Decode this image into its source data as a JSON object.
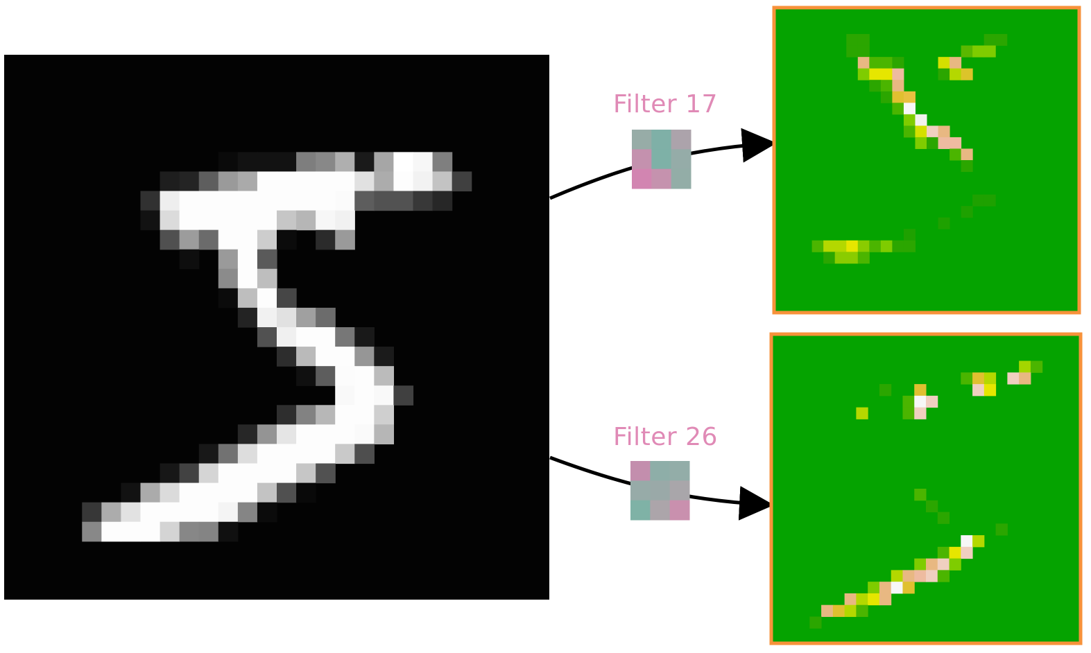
{
  "labels": {
    "filter_a": "Filter 17",
    "filter_b": "Filter 26"
  },
  "colors": {
    "input_background": "#030303",
    "feature_map_background": "#05a300",
    "feature_map_border": "#f7923a",
    "label_color": "#e08ab6",
    "arrow_color": "#000000"
  },
  "input_image": {
    "grid_size": 28,
    "description_values": "grayscale intensity 0-255 per pixel",
    "pixels": [
      [
        3,
        3,
        3,
        3,
        3,
        3,
        3,
        3,
        3,
        3,
        3,
        3,
        3,
        3,
        3,
        3,
        3,
        3,
        3,
        3,
        3,
        3,
        3,
        3,
        3,
        3,
        3,
        3
      ],
      [
        3,
        3,
        3,
        3,
        3,
        3,
        3,
        3,
        3,
        3,
        3,
        3,
        3,
        3,
        3,
        3,
        3,
        3,
        3,
        3,
        3,
        3,
        3,
        3,
        3,
        3,
        3,
        3
      ],
      [
        3,
        3,
        3,
        3,
        3,
        3,
        3,
        3,
        3,
        3,
        3,
        3,
        3,
        3,
        3,
        3,
        3,
        3,
        3,
        3,
        3,
        3,
        3,
        3,
        3,
        3,
        3,
        3
      ],
      [
        3,
        3,
        3,
        3,
        3,
        3,
        3,
        3,
        3,
        3,
        3,
        3,
        3,
        3,
        3,
        3,
        3,
        3,
        3,
        3,
        3,
        3,
        3,
        3,
        3,
        3,
        3,
        3
      ],
      [
        3,
        3,
        3,
        3,
        3,
        3,
        3,
        3,
        3,
        3,
        3,
        3,
        3,
        3,
        3,
        3,
        3,
        3,
        3,
        3,
        3,
        3,
        3,
        3,
        3,
        3,
        3,
        3
      ],
      [
        3,
        3,
        3,
        3,
        3,
        3,
        3,
        3,
        3,
        3,
        3,
        10,
        18,
        18,
        18,
        126,
        136,
        175,
        26,
        166,
        255,
        247,
        127,
        3,
        3,
        3,
        3,
        3
      ],
      [
        3,
        3,
        3,
        3,
        3,
        3,
        3,
        3,
        30,
        36,
        94,
        154,
        170,
        253,
        253,
        253,
        253,
        253,
        225,
        172,
        253,
        242,
        195,
        64,
        3,
        3,
        3,
        3
      ],
      [
        3,
        3,
        3,
        3,
        3,
        3,
        3,
        49,
        238,
        253,
        253,
        253,
        253,
        253,
        253,
        253,
        253,
        251,
        93,
        82,
        82,
        56,
        39,
        3,
        3,
        3,
        3,
        3
      ],
      [
        3,
        3,
        3,
        3,
        3,
        3,
        3,
        18,
        219,
        253,
        253,
        253,
        253,
        253,
        198,
        182,
        247,
        241,
        3,
        3,
        3,
        3,
        3,
        3,
        3,
        3,
        3,
        3
      ],
      [
        3,
        3,
        3,
        3,
        3,
        3,
        3,
        3,
        80,
        156,
        107,
        253,
        253,
        205,
        11,
        3,
        43,
        154,
        3,
        3,
        3,
        3,
        3,
        3,
        3,
        3,
        3,
        3
      ],
      [
        3,
        3,
        3,
        3,
        3,
        3,
        3,
        3,
        3,
        14,
        1,
        154,
        253,
        90,
        3,
        3,
        3,
        3,
        3,
        3,
        3,
        3,
        3,
        3,
        3,
        3,
        3,
        3
      ],
      [
        3,
        3,
        3,
        3,
        3,
        3,
        3,
        3,
        3,
        3,
        3,
        139,
        253,
        190,
        2,
        3,
        3,
        3,
        3,
        3,
        3,
        3,
        3,
        3,
        3,
        3,
        3,
        3
      ],
      [
        3,
        3,
        3,
        3,
        3,
        3,
        3,
        3,
        3,
        3,
        3,
        11,
        190,
        253,
        70,
        3,
        3,
        3,
        3,
        3,
        3,
        3,
        3,
        3,
        3,
        3,
        3,
        3
      ],
      [
        3,
        3,
        3,
        3,
        3,
        3,
        3,
        3,
        3,
        3,
        3,
        3,
        35,
        241,
        225,
        160,
        108,
        1,
        3,
        3,
        3,
        3,
        3,
        3,
        3,
        3,
        3,
        3
      ],
      [
        3,
        3,
        3,
        3,
        3,
        3,
        3,
        3,
        3,
        3,
        3,
        3,
        3,
        81,
        240,
        253,
        253,
        119,
        25,
        3,
        3,
        3,
        3,
        3,
        3,
        3,
        3,
        3
      ],
      [
        3,
        3,
        3,
        3,
        3,
        3,
        3,
        3,
        3,
        3,
        3,
        3,
        3,
        3,
        45,
        186,
        253,
        253,
        150,
        27,
        3,
        3,
        3,
        3,
        3,
        3,
        3,
        3
      ],
      [
        3,
        3,
        3,
        3,
        3,
        3,
        3,
        3,
        3,
        3,
        3,
        3,
        3,
        3,
        3,
        16,
        93,
        252,
        253,
        187,
        3,
        3,
        3,
        3,
        3,
        3,
        3,
        3
      ],
      [
        3,
        3,
        3,
        3,
        3,
        3,
        3,
        3,
        3,
        3,
        3,
        3,
        3,
        3,
        3,
        3,
        3,
        249,
        253,
        249,
        64,
        3,
        3,
        3,
        3,
        3,
        3,
        3
      ],
      [
        3,
        3,
        3,
        3,
        3,
        3,
        3,
        3,
        3,
        3,
        3,
        3,
        3,
        3,
        46,
        130,
        183,
        253,
        253,
        207,
        2,
        3,
        3,
        3,
        3,
        3,
        3,
        3
      ],
      [
        3,
        3,
        3,
        3,
        3,
        3,
        3,
        3,
        3,
        3,
        3,
        3,
        39,
        148,
        229,
        253,
        253,
        253,
        250,
        182,
        3,
        3,
        3,
        3,
        3,
        3,
        3,
        3
      ],
      [
        3,
        3,
        3,
        3,
        3,
        3,
        3,
        3,
        3,
        3,
        24,
        114,
        221,
        253,
        253,
        253,
        253,
        201,
        78,
        3,
        3,
        3,
        3,
        3,
        3,
        3,
        3,
        3
      ],
      [
        3,
        3,
        3,
        3,
        3,
        3,
        3,
        3,
        23,
        66,
        213,
        253,
        253,
        253,
        253,
        198,
        81,
        2,
        3,
        3,
        3,
        3,
        3,
        3,
        3,
        3,
        3,
        3
      ],
      [
        3,
        3,
        3,
        3,
        3,
        3,
        18,
        171,
        219,
        253,
        253,
        253,
        253,
        195,
        80,
        9,
        3,
        3,
        3,
        3,
        3,
        3,
        3,
        3,
        3,
        3,
        3,
        3
      ],
      [
        3,
        3,
        3,
        3,
        55,
        172,
        226,
        253,
        253,
        253,
        253,
        244,
        133,
        11,
        3,
        3,
        3,
        3,
        3,
        3,
        3,
        3,
        3,
        3,
        3,
        3,
        3,
        3
      ],
      [
        3,
        3,
        3,
        3,
        136,
        253,
        253,
        253,
        212,
        135,
        132,
        16,
        3,
        3,
        3,
        3,
        3,
        3,
        3,
        3,
        3,
        3,
        3,
        3,
        3,
        3,
        3,
        3
      ],
      [
        3,
        3,
        3,
        3,
        3,
        3,
        3,
        3,
        3,
        3,
        3,
        3,
        3,
        3,
        3,
        3,
        3,
        3,
        3,
        3,
        3,
        3,
        3,
        3,
        3,
        3,
        3,
        3
      ],
      [
        3,
        3,
        3,
        3,
        3,
        3,
        3,
        3,
        3,
        3,
        3,
        3,
        3,
        3,
        3,
        3,
        3,
        3,
        3,
        3,
        3,
        3,
        3,
        3,
        3,
        3,
        3,
        3
      ],
      [
        3,
        3,
        3,
        3,
        3,
        3,
        3,
        3,
        3,
        3,
        3,
        3,
        3,
        3,
        3,
        3,
        3,
        3,
        3,
        3,
        3,
        3,
        3,
        3,
        3,
        3,
        3,
        3
      ]
    ]
  },
  "kernel_a": [
    [
      "#97aca7",
      "#7fb0a7",
      "#aca3ab"
    ],
    [
      "#c491ae",
      "#7eb1a7",
      "#95aca8"
    ],
    [
      "#d285b1",
      "#c592ae",
      "#93ada7"
    ]
  ],
  "kernel_b": [
    [
      "#c38ead",
      "#8eaea8",
      "#93ada8"
    ],
    [
      "#97aba8",
      "#9aa9a8",
      "#a9a6aa"
    ],
    [
      "#7fb2a6",
      "#aca5aa",
      "#c990ae"
    ]
  ],
  "feature_map_a": {
    "grid_size": 26,
    "cells": [
      [
        6,
        2,
        "#2ba600"
      ],
      [
        7,
        2,
        "#2ba600"
      ],
      [
        18,
        2,
        "#2ba600"
      ],
      [
        19,
        2,
        "#2ba600"
      ],
      [
        6,
        3,
        "#2ba600"
      ],
      [
        7,
        3,
        "#2ba600"
      ],
      [
        16,
        3,
        "#5ab800"
      ],
      [
        17,
        3,
        "#7fcc00"
      ],
      [
        18,
        3,
        "#7fcc00"
      ],
      [
        7,
        4,
        "#e8b882"
      ],
      [
        8,
        4,
        "#4bb500"
      ],
      [
        9,
        4,
        "#4bb500"
      ],
      [
        10,
        4,
        "#2ba600"
      ],
      [
        14,
        4,
        "#d4e000"
      ],
      [
        15,
        4,
        "#e8b882"
      ],
      [
        7,
        5,
        "#7fcc00"
      ],
      [
        8,
        5,
        "#e6e600"
      ],
      [
        9,
        5,
        "#e6e600"
      ],
      [
        10,
        5,
        "#eebba0"
      ],
      [
        14,
        5,
        "#2ba600"
      ],
      [
        15,
        5,
        "#b4d800"
      ],
      [
        16,
        5,
        "#dcc42a"
      ],
      [
        8,
        6,
        "#2ba600"
      ],
      [
        9,
        6,
        "#4bb500"
      ],
      [
        10,
        6,
        "#e8b882"
      ],
      [
        9,
        7,
        "#2ba600"
      ],
      [
        10,
        7,
        "#e0c030"
      ],
      [
        11,
        7,
        "#e8c040"
      ],
      [
        10,
        8,
        "#4bb500"
      ],
      [
        11,
        8,
        "#f7f7f7"
      ],
      [
        11,
        9,
        "#7fcc00"
      ],
      [
        12,
        9,
        "#f2f2ee"
      ],
      [
        11,
        10,
        "#4bb500"
      ],
      [
        12,
        10,
        "#d4e000"
      ],
      [
        13,
        10,
        "#f0d0c0"
      ],
      [
        14,
        10,
        "#e8b882"
      ],
      [
        12,
        11,
        "#7fcc00"
      ],
      [
        13,
        11,
        "#2ba600"
      ],
      [
        14,
        11,
        "#eebba0"
      ],
      [
        15,
        11,
        "#eebba0"
      ],
      [
        15,
        12,
        "#4bb500"
      ],
      [
        16,
        12,
        "#e8b882"
      ],
      [
        16,
        13,
        "#2ba600"
      ],
      [
        17,
        16,
        "#1ea100"
      ],
      [
        18,
        16,
        "#1ea100"
      ],
      [
        16,
        17,
        "#1ea100"
      ],
      [
        14,
        18,
        "#1ea100"
      ],
      [
        11,
        19,
        "#1ea100"
      ],
      [
        3,
        20,
        "#4bb500"
      ],
      [
        4,
        20,
        "#b4d800"
      ],
      [
        5,
        20,
        "#b4d800"
      ],
      [
        6,
        20,
        "#e6e600"
      ],
      [
        7,
        20,
        "#8acc00"
      ],
      [
        8,
        20,
        "#4bb500"
      ],
      [
        9,
        20,
        "#7fcc00"
      ],
      [
        10,
        20,
        "#2ba600"
      ],
      [
        11,
        20,
        "#2ba600"
      ],
      [
        4,
        21,
        "#2ba600"
      ],
      [
        5,
        21,
        "#8acc00"
      ],
      [
        6,
        21,
        "#8acc00"
      ],
      [
        7,
        21,
        "#4bb500"
      ]
    ]
  },
  "feature_map_b": {
    "grid_size": 26,
    "cells": [
      [
        21,
        2,
        "#a4d600"
      ],
      [
        22,
        2,
        "#4bb500"
      ],
      [
        16,
        3,
        "#4bb500"
      ],
      [
        17,
        3,
        "#e0c030"
      ],
      [
        18,
        3,
        "#b4d800"
      ],
      [
        20,
        3,
        "#f0cfc0"
      ],
      [
        21,
        3,
        "#e8b882"
      ],
      [
        9,
        4,
        "#2ba600"
      ],
      [
        12,
        4,
        "#e0c030"
      ],
      [
        17,
        4,
        "#f0d0c0"
      ],
      [
        18,
        4,
        "#e6e600"
      ],
      [
        11,
        5,
        "#4bb500"
      ],
      [
        12,
        5,
        "#f7f7f7"
      ],
      [
        13,
        5,
        "#f0cfc0"
      ],
      [
        7,
        6,
        "#b4d800"
      ],
      [
        11,
        6,
        "#4bb500"
      ],
      [
        12,
        6,
        "#f0d0c0"
      ],
      [
        12,
        13,
        "#4bb500"
      ],
      [
        13,
        14,
        "#2ba600"
      ],
      [
        14,
        15,
        "#2ba600"
      ],
      [
        19,
        16,
        "#2ba600"
      ],
      [
        16,
        17,
        "#f7f7f7"
      ],
      [
        17,
        17,
        "#b4d800"
      ],
      [
        14,
        18,
        "#4bb500"
      ],
      [
        15,
        18,
        "#e6e600"
      ],
      [
        16,
        18,
        "#f0cfc0"
      ],
      [
        12,
        19,
        "#7fcc00"
      ],
      [
        13,
        19,
        "#e8b882"
      ],
      [
        14,
        19,
        "#f0d0c0"
      ],
      [
        15,
        19,
        "#7fcc00"
      ],
      [
        10,
        20,
        "#b4d800"
      ],
      [
        11,
        20,
        "#e8b882"
      ],
      [
        12,
        20,
        "#eebba0"
      ],
      [
        13,
        20,
        "#f0cfc0"
      ],
      [
        14,
        20,
        "#4bb500"
      ],
      [
        8,
        21,
        "#7fcc00"
      ],
      [
        9,
        21,
        "#e8b882"
      ],
      [
        10,
        21,
        "#f7f7f7"
      ],
      [
        11,
        21,
        "#e0c030"
      ],
      [
        6,
        22,
        "#e8b882"
      ],
      [
        7,
        22,
        "#b4d800"
      ],
      [
        8,
        22,
        "#e6e600"
      ],
      [
        9,
        22,
        "#e8b882"
      ],
      [
        4,
        23,
        "#e8b882"
      ],
      [
        5,
        23,
        "#e0c030"
      ],
      [
        6,
        23,
        "#b4d800"
      ],
      [
        7,
        23,
        "#4bb500"
      ],
      [
        3,
        24,
        "#2ba600"
      ]
    ]
  }
}
